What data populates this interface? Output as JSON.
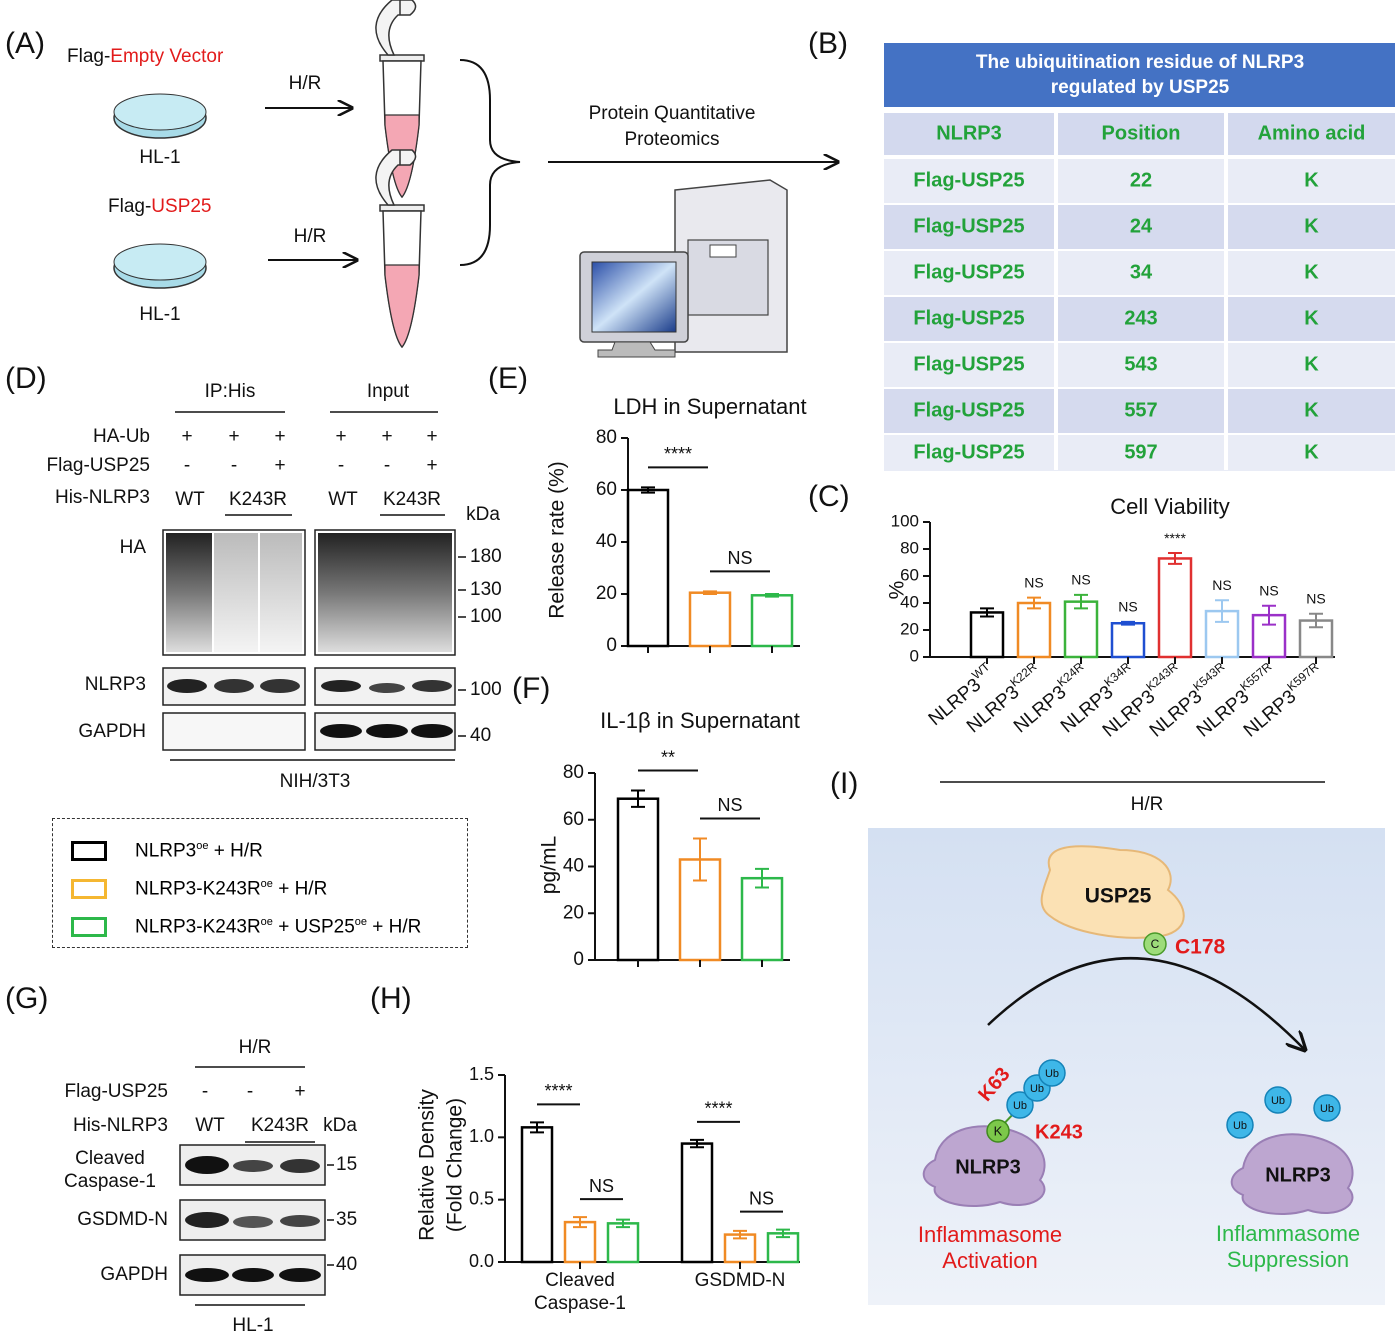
{
  "panel_labels": [
    "(A)",
    "(B)",
    "(C)",
    "(D)",
    "(E)",
    "(F)",
    "(G)",
    "(H)",
    "(I)"
  ],
  "panel_a": {
    "groups": [
      {
        "prefix": "Flag-",
        "construct": "Empty Vector",
        "cell": "HL-1",
        "treatment": "H/R"
      },
      {
        "prefix": "Flag-",
        "construct": "USP25",
        "cell": "HL-1",
        "treatment": "H/R"
      }
    ],
    "process": [
      "Protein Quantitative",
      "Proteomics"
    ]
  },
  "table_b": {
    "title": [
      "The ubiquitination residue of NLRP3",
      "regulated by USP25"
    ],
    "header": [
      "NLRP3",
      "Position",
      "Amino acid"
    ],
    "rows": [
      [
        "Flag-USP25",
        "22",
        "K"
      ],
      [
        "Flag-USP25",
        "24",
        "K"
      ],
      [
        "Flag-USP25",
        "34",
        "K"
      ],
      [
        "Flag-USP25",
        "243",
        "K"
      ],
      [
        "Flag-USP25",
        "543",
        "K"
      ],
      [
        "Flag-USP25",
        "557",
        "K"
      ],
      [
        "Flag-USP25",
        "597",
        "K"
      ]
    ]
  },
  "panel_d": {
    "headers": [
      "IP:His",
      "Input"
    ],
    "rows": [
      {
        "label": "HA-Ub",
        "cells": [
          "+",
          "+",
          "+",
          "+",
          "+",
          "+"
        ]
      },
      {
        "label": "Flag-USP25",
        "cells": [
          "-",
          "-",
          "+",
          "-",
          "-",
          "+"
        ]
      }
    ],
    "genotype_label": "His-NLRP3",
    "genotypes": [
      "WT",
      "K243R",
      "WT",
      "K243R"
    ],
    "kda": "kDa",
    "blots": [
      {
        "label": "HA",
        "markers": [
          "180",
          "130",
          "100"
        ]
      },
      {
        "label": "NLRP3",
        "markers": [
          "100"
        ]
      },
      {
        "label": "GAPDH",
        "markers": [
          "40"
        ]
      }
    ],
    "cell": "NIH/3T3"
  },
  "panel_g": {
    "header": "H/R",
    "rows": [
      {
        "label": "Flag-USP25",
        "cells": [
          "-",
          "-",
          "+"
        ]
      }
    ],
    "genotype_label": "His-NLRP3",
    "genotypes": [
      "WT",
      "K243R"
    ],
    "kda": "kDa",
    "blots": [
      {
        "label": "Cleaved Caspase-1",
        "markers": [
          "15"
        ]
      },
      {
        "label": "GSDMD-N",
        "markers": [
          "35"
        ]
      },
      {
        "label": "GAPDH",
        "markers": [
          "40"
        ]
      }
    ],
    "cell": "HL-1"
  },
  "legend": {
    "entries": [
      {
        "color": "#000000",
        "parts": [
          "NLRP3",
          "oe",
          " + H/R"
        ]
      },
      {
        "color": "#f5b731",
        "parts": [
          "NLRP3-K243R",
          "oe",
          " + H/R"
        ]
      },
      {
        "color": "#2db84a",
        "parts": [
          "NLRP3-K243R",
          "oe",
          " + USP25",
          "oe",
          " + H/R"
        ]
      }
    ]
  },
  "panel_i": {
    "enzyme": "USP25",
    "site": "C",
    "site_label": "C178",
    "chain": "K63",
    "residue": "K",
    "residue_label": "K243",
    "ub": "Ub",
    "substrate": "NLRP3",
    "left_state": "Inflammasome Activation",
    "right_state": "Inflammasome Suppression"
  },
  "chart_data": [
    {
      "type": "bar",
      "title": "Cell Viability",
      "y_label": "%",
      "x_group_label": "H/R",
      "categories": [
        [
          "NLRP3",
          "WT"
        ],
        [
          "NLRP3",
          "K22R"
        ],
        [
          "NLRP3",
          "K24R"
        ],
        [
          "NLRP3",
          "K34R"
        ],
        [
          "NLRP3",
          "K243R"
        ],
        [
          "NLRP3",
          "K543R"
        ],
        [
          "NLRP3",
          "K557R"
        ],
        [
          "NLRP3",
          "K597R"
        ]
      ],
      "values": [
        33,
        40,
        41,
        25,
        73,
        34,
        31,
        27
      ],
      "errors": [
        3,
        4,
        5,
        1,
        4,
        8,
        7,
        5
      ],
      "colors": [
        "#000000",
        "#f08a24",
        "#3bb33b",
        "#1f4fd1",
        "#e03030",
        "#9cc8f0",
        "#9b30c8",
        "#888888"
      ],
      "annotations": [
        null,
        "NS",
        "NS",
        "NS",
        "****",
        "NS",
        "NS",
        "NS"
      ],
      "ylim": [
        0,
        100
      ],
      "yticks": [
        0,
        20,
        40,
        60,
        80,
        100
      ]
    },
    {
      "type": "bar",
      "title": "LDH in Supernatant",
      "y_label": "Release rate (%)",
      "values": [
        60,
        20.5,
        19.5
      ],
      "errors": [
        1,
        0.5,
        0.5
      ],
      "colors": [
        "#000000",
        "#f08a24",
        "#2db84a"
      ],
      "annotations": [
        "****",
        "NS"
      ],
      "ylim": [
        0,
        80
      ],
      "yticks": [
        0,
        20,
        40,
        60,
        80
      ]
    },
    {
      "type": "bar",
      "title": "IL-1β in Supernatant",
      "y_label": "pg/mL",
      "values": [
        69,
        43,
        35
      ],
      "errors": [
        3.5,
        9,
        4
      ],
      "colors": [
        "#000000",
        "#f08a24",
        "#2db84a"
      ],
      "annotations": [
        "**",
        "NS"
      ],
      "ylim": [
        0,
        80
      ],
      "yticks": [
        0,
        20,
        40,
        60,
        80
      ]
    },
    {
      "type": "grouped_bar",
      "y_label": [
        "Relative Density",
        "(Fold Change)"
      ],
      "categories": [
        "Cleaved Caspase-1",
        "GSDMD-N"
      ],
      "series": [
        {
          "color": "#000000",
          "values": [
            1.08,
            0.95
          ],
          "errors": [
            0.04,
            0.03
          ]
        },
        {
          "color": "#f08a24",
          "values": [
            0.32,
            0.22
          ],
          "errors": [
            0.04,
            0.03
          ]
        },
        {
          "color": "#2db84a",
          "values": [
            0.31,
            0.23
          ],
          "errors": [
            0.03,
            0.03
          ]
        }
      ],
      "annotations": [
        [
          "****",
          "NS"
        ],
        [
          "****",
          "NS"
        ]
      ],
      "ylim": [
        0,
        1.5
      ],
      "yticks": [
        {
          "value": 0,
          "label": "0.0"
        },
        {
          "value": 0.5,
          "label": "0.5"
        },
        {
          "value": 1,
          "label": "1.0"
        },
        {
          "value": 1.5,
          "label": "1.5"
        }
      ]
    }
  ]
}
